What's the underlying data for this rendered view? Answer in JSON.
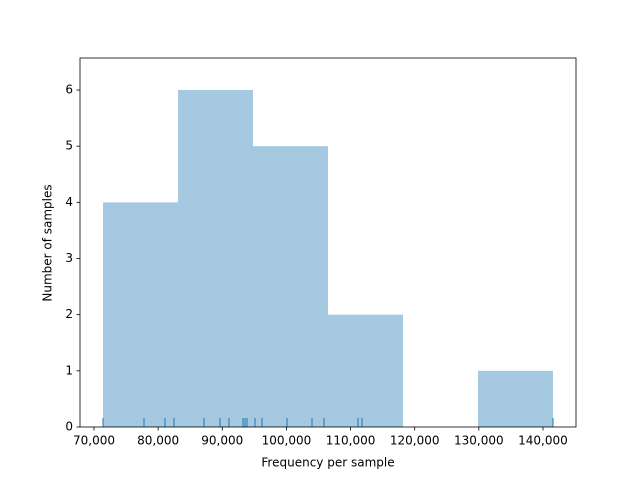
{
  "chart_data": {
    "type": "histogram",
    "x_label": "Frequency per sample",
    "y_label": "Number of samples",
    "bins": [
      71403,
      83096,
      94789,
      106481,
      118174,
      129867,
      141560
    ],
    "values": [
      4,
      6,
      5,
      2,
      0,
      1
    ],
    "rug": [
      71403,
      77795,
      81069,
      82472,
      87150,
      89644,
      91048,
      93230,
      93542,
      93854,
      95101,
      96193,
      100090,
      103988,
      105859,
      111160,
      111784,
      141560
    ],
    "color": "#1f77b4",
    "xlim": [
      67817,
      145148
    ],
    "ylim": [
      0,
      6.57
    ],
    "xticks": [
      {
        "value": 70000,
        "label": "70,000"
      },
      {
        "value": 80000,
        "label": "80,000"
      },
      {
        "value": 90000,
        "label": "90,000"
      },
      {
        "value": 100000,
        "label": "100,000"
      },
      {
        "value": 110000,
        "label": "110,000"
      },
      {
        "value": 120000,
        "label": "120,000"
      },
      {
        "value": 130000,
        "label": "130,000"
      },
      {
        "value": 140000,
        "label": "140,000"
      }
    ],
    "yticks": [
      0,
      1,
      2,
      3,
      4,
      5,
      6
    ]
  }
}
